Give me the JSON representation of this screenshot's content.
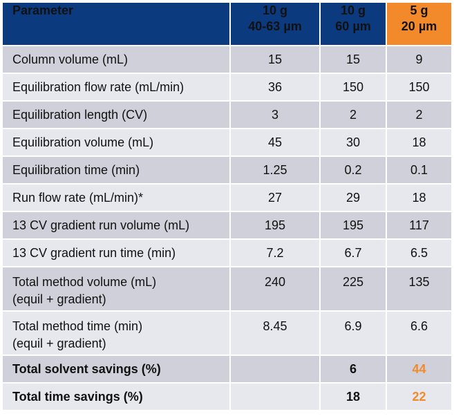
{
  "header": {
    "parameter": "Parameter",
    "columns": [
      {
        "line1": "10 g",
        "line2": "40-63  µm"
      },
      {
        "line1": "10 g",
        "line2": "60 µm"
      },
      {
        "line1": "5 g",
        "line2": "20 µm"
      }
    ]
  },
  "rows": [
    {
      "label": "Column volume (mL)",
      "values": [
        "15",
        "15",
        "9"
      ]
    },
    {
      "label": "Equilibration flow rate (mL/min)",
      "values": [
        "36",
        "150",
        "150"
      ]
    },
    {
      "label": "Equilibration length (CV)",
      "values": [
        "3",
        "2",
        "2"
      ]
    },
    {
      "label": "Equilibration volume (mL)",
      "values": [
        "45",
        "30",
        "18"
      ]
    },
    {
      "label": "Equilibration time (min)",
      "values": [
        "1.25",
        "0.2",
        "0.1"
      ]
    },
    {
      "label": "Run flow rate (mL/min)*",
      "values": [
        "27",
        "29",
        "18"
      ]
    },
    {
      "label": "13 CV gradient run volume (mL)",
      "values": [
        "195",
        "195",
        "117"
      ]
    },
    {
      "label": "13 CV gradient run time (min)",
      "values": [
        "7.2",
        "6.7",
        "6.5"
      ]
    },
    {
      "label": "Total method volume (mL)",
      "sublabel": "(equil + gradient)",
      "values": [
        "240",
        "225",
        "135"
      ]
    },
    {
      "label": "Total method time (min)",
      "sublabel": "(equil + gradient)",
      "values": [
        "8.45",
        "6.9",
        "6.6"
      ]
    },
    {
      "label": "Total solvent savings (%)",
      "values": [
        "",
        "6",
        "44"
      ]
    },
    {
      "label": "Total time savings (%)",
      "values": [
        "",
        "18",
        "22"
      ]
    }
  ],
  "colors": {
    "header_blue": "#0b3a7e",
    "highlight_orange": "#f28a2c",
    "row_dark": "#cfd0d9",
    "row_light": "#e7e8ee"
  }
}
